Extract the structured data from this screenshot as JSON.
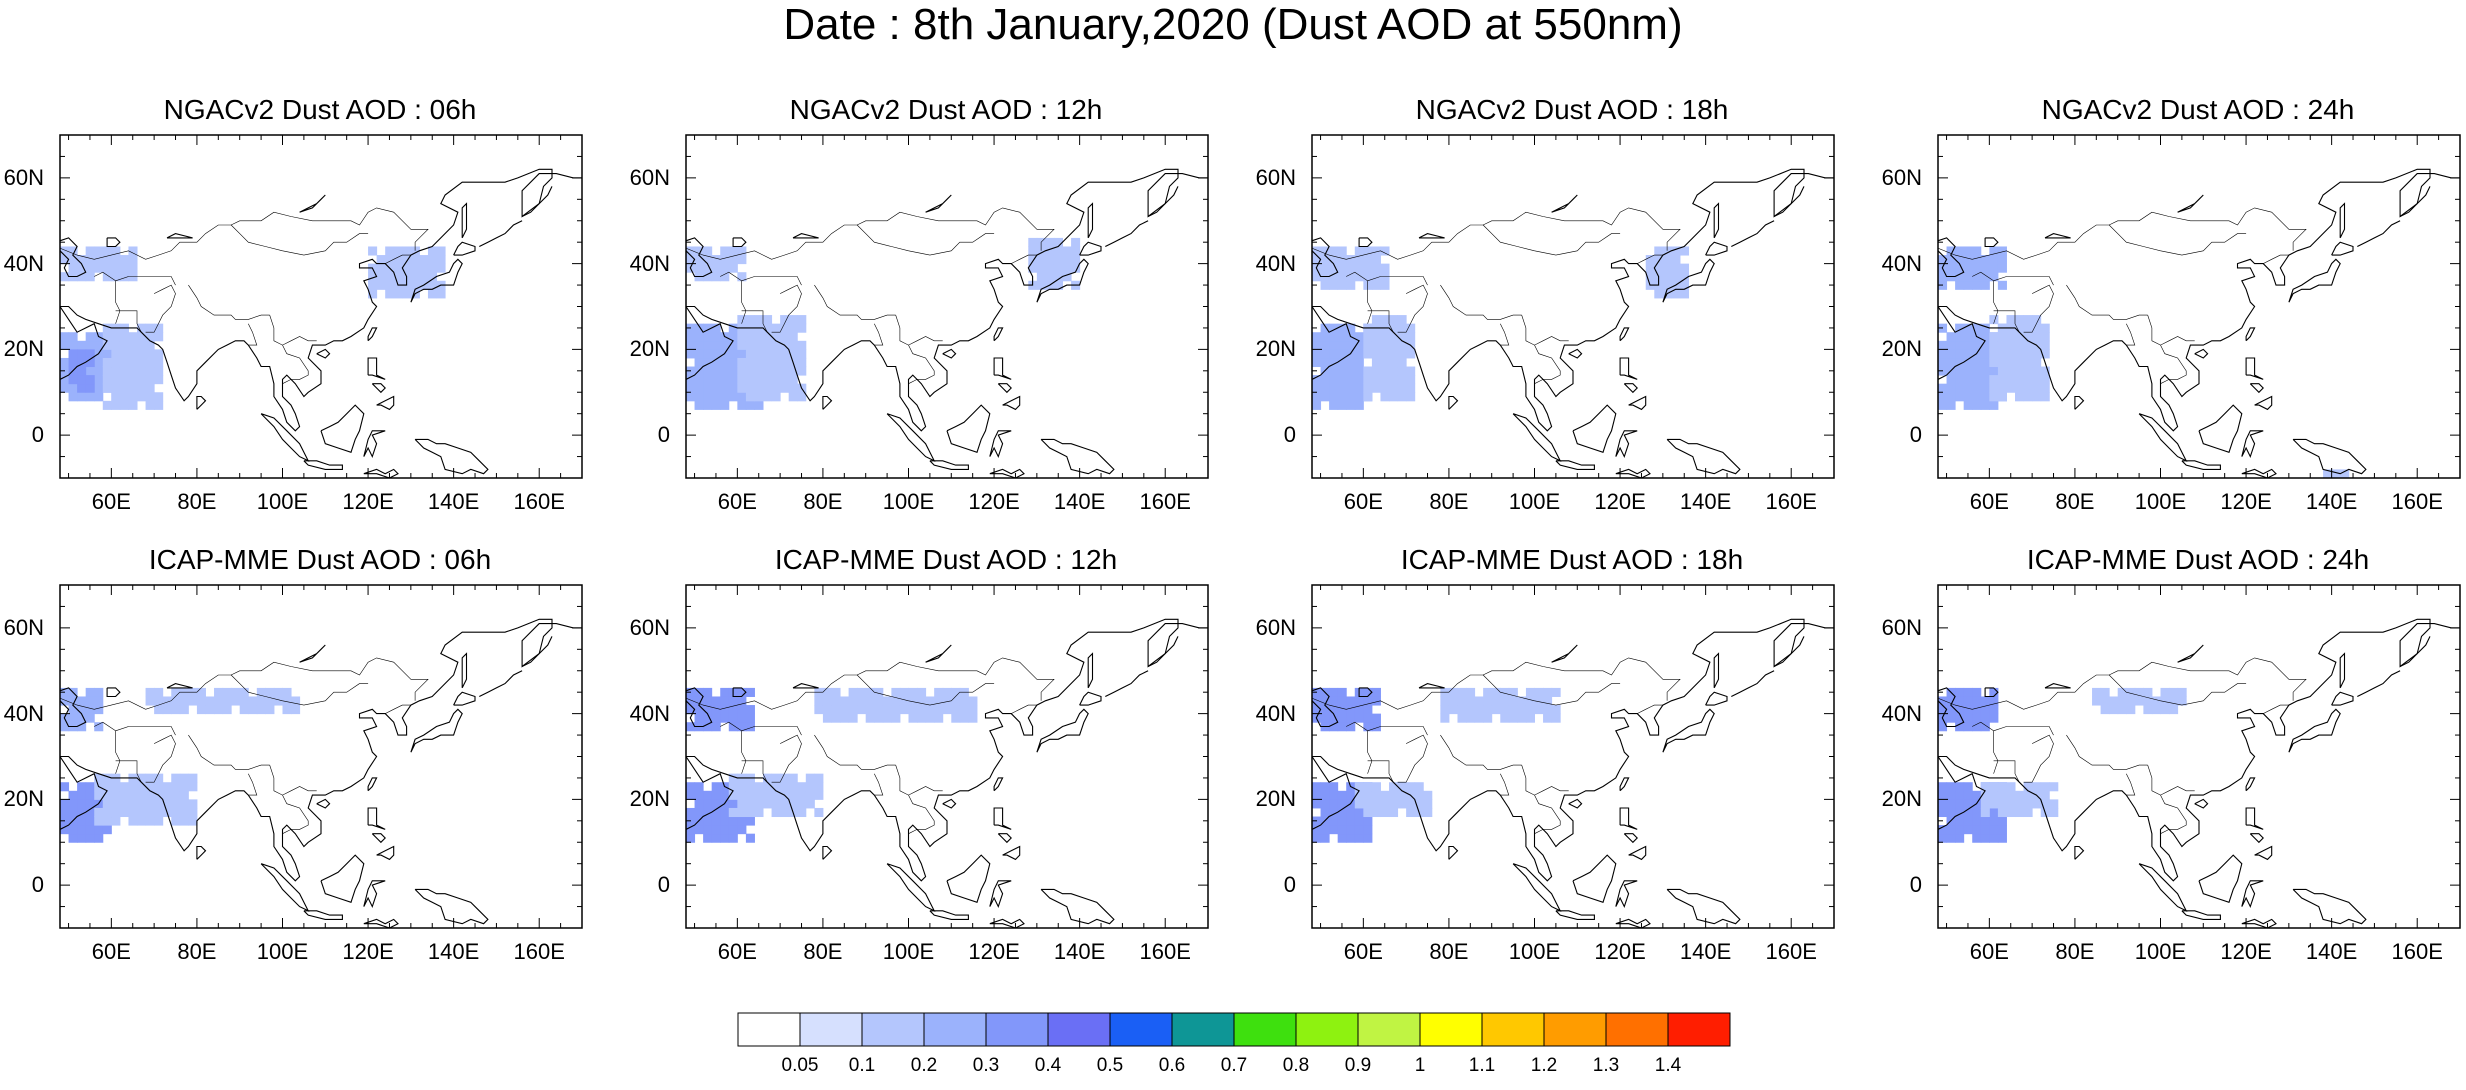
{
  "title": "Date : 8th January,2020 (Dust AOD at 550nm)",
  "map": {
    "lon_range": [
      48,
      170
    ],
    "lat_range": [
      -10,
      70
    ],
    "lon_ticks": [
      "60E",
      "80E",
      "100E",
      "120E",
      "140E",
      "160E"
    ],
    "lon_tick_values": [
      60,
      80,
      100,
      120,
      140,
      160
    ],
    "lat_ticks": [
      "60N",
      "40N",
      "20N",
      "0"
    ],
    "lat_tick_values": [
      60,
      40,
      20,
      0
    ],
    "coastline_color": "#000000"
  },
  "panels": [
    {
      "title": "NGACv2 Dust AOD : 06h",
      "model": "NGACv2",
      "lead_time": "06h",
      "dust_regions": [
        {
          "lon": [
            48,
            62
          ],
          "lat": [
            8,
            24
          ],
          "aod": 0.25
        },
        {
          "lon": [
            58,
            72
          ],
          "lat": [
            6,
            26
          ],
          "aod": 0.15
        },
        {
          "lon": [
            50,
            56
          ],
          "lat": [
            10,
            20
          ],
          "aod": 0.3
        },
        {
          "lon": [
            48,
            66
          ],
          "lat": [
            36,
            44
          ],
          "aod": 0.15
        },
        {
          "lon": [
            120,
            138
          ],
          "lat": [
            32,
            44
          ],
          "aod": 0.1
        }
      ]
    },
    {
      "title": "NGACv2 Dust AOD : 12h",
      "model": "NGACv2",
      "lead_time": "12h",
      "dust_regions": [
        {
          "lon": [
            48,
            66
          ],
          "lat": [
            6,
            26
          ],
          "aod": 0.25
        },
        {
          "lon": [
            60,
            76
          ],
          "lat": [
            8,
            28
          ],
          "aod": 0.15
        },
        {
          "lon": [
            48,
            62
          ],
          "lat": [
            36,
            44
          ],
          "aod": 0.15
        },
        {
          "lon": [
            128,
            140
          ],
          "lat": [
            34,
            46
          ],
          "aod": 0.1
        }
      ]
    },
    {
      "title": "NGACv2 Dust AOD : 18h",
      "model": "NGACv2",
      "lead_time": "18h",
      "dust_regions": [
        {
          "lon": [
            48,
            62
          ],
          "lat": [
            6,
            26
          ],
          "aod": 0.25
        },
        {
          "lon": [
            60,
            72
          ],
          "lat": [
            8,
            28
          ],
          "aod": 0.15
        },
        {
          "lon": [
            48,
            66
          ],
          "lat": [
            34,
            44
          ],
          "aod": 0.15
        },
        {
          "lon": [
            126,
            136
          ],
          "lat": [
            32,
            44
          ],
          "aod": 0.1
        }
      ]
    },
    {
      "title": "NGACv2 Dust AOD : 24h",
      "model": "NGACv2",
      "lead_time": "24h",
      "dust_regions": [
        {
          "lon": [
            48,
            64
          ],
          "lat": [
            6,
            26
          ],
          "aod": 0.25
        },
        {
          "lon": [
            60,
            74
          ],
          "lat": [
            8,
            28
          ],
          "aod": 0.15
        },
        {
          "lon": [
            48,
            64
          ],
          "lat": [
            34,
            44
          ],
          "aod": 0.2
        },
        {
          "lon": [
            136,
            144
          ],
          "lat": [
            -10,
            -8
          ],
          "aod": 0.15
        }
      ]
    },
    {
      "title": "ICAP-MME Dust AOD : 06h",
      "model": "ICAP-MME",
      "lead_time": "06h",
      "dust_regions": [
        {
          "lon": [
            48,
            60
          ],
          "lat": [
            10,
            24
          ],
          "aod": 0.3
        },
        {
          "lon": [
            56,
            80
          ],
          "lat": [
            14,
            26
          ],
          "aod": 0.15
        },
        {
          "lon": [
            48,
            58
          ],
          "lat": [
            36,
            46
          ],
          "aod": 0.25
        },
        {
          "lon": [
            68,
            104
          ],
          "lat": [
            40,
            46
          ],
          "aod": 0.1
        }
      ]
    },
    {
      "title": "ICAP-MME Dust AOD : 12h",
      "model": "ICAP-MME",
      "lead_time": "12h",
      "dust_regions": [
        {
          "lon": [
            48,
            64
          ],
          "lat": [
            10,
            24
          ],
          "aod": 0.3
        },
        {
          "lon": [
            58,
            80
          ],
          "lat": [
            16,
            26
          ],
          "aod": 0.15
        },
        {
          "lon": [
            48,
            64
          ],
          "lat": [
            36,
            46
          ],
          "aod": 0.3
        },
        {
          "lon": [
            78,
            116
          ],
          "lat": [
            38,
            46
          ],
          "aod": 0.1
        }
      ]
    },
    {
      "title": "ICAP-MME Dust AOD : 18h",
      "model": "ICAP-MME",
      "lead_time": "18h",
      "dust_regions": [
        {
          "lon": [
            48,
            62
          ],
          "lat": [
            10,
            24
          ],
          "aod": 0.3
        },
        {
          "lon": [
            58,
            76
          ],
          "lat": [
            16,
            24
          ],
          "aod": 0.15
        },
        {
          "lon": [
            48,
            64
          ],
          "lat": [
            36,
            46
          ],
          "aod": 0.3
        },
        {
          "lon": [
            78,
            106
          ],
          "lat": [
            38,
            46
          ],
          "aod": 0.1
        }
      ]
    },
    {
      "title": "ICAP-MME Dust AOD : 24h",
      "model": "ICAP-MME",
      "lead_time": "24h",
      "dust_regions": [
        {
          "lon": [
            48,
            64
          ],
          "lat": [
            10,
            24
          ],
          "aod": 0.3
        },
        {
          "lon": [
            58,
            76
          ],
          "lat": [
            16,
            24
          ],
          "aod": 0.15
        },
        {
          "lon": [
            48,
            62
          ],
          "lat": [
            36,
            46
          ],
          "aod": 0.35
        },
        {
          "lon": [
            84,
            106
          ],
          "lat": [
            40,
            46
          ],
          "aod": 0.1
        }
      ]
    }
  ],
  "colorbar": {
    "labels": [
      "0.05",
      "0.1",
      "0.2",
      "0.3",
      "0.4",
      "0.5",
      "0.6",
      "0.7",
      "0.8",
      "0.9",
      "1",
      "1.1",
      "1.2",
      "1.3",
      "1.4"
    ],
    "bounds": [
      0.05,
      0.1,
      0.2,
      0.3,
      0.4,
      0.5,
      0.6,
      0.7,
      0.8,
      0.9,
      1.0,
      1.1,
      1.2,
      1.3,
      1.4
    ],
    "colors": [
      "#ffffff",
      "#d6e0fe",
      "#b4c6fd",
      "#9bb2fc",
      "#8297fa",
      "#6a6ff5",
      "#1a5ff5",
      "#0e9696",
      "#3ee00e",
      "#8ef210",
      "#c0f443",
      "#ffff00",
      "#ffc800",
      "#ff9c00",
      "#ff7000",
      "#ff1e00"
    ]
  }
}
